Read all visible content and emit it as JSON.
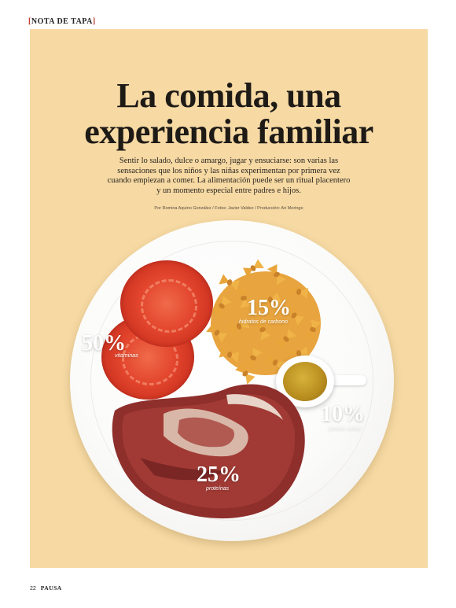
{
  "section_tag": "NOTA DE TAPA",
  "article": {
    "title_line1": "La comida, una",
    "title_line2": "experiencia familiar",
    "lede": "Sentir lo salado, dulce o amargo, jugar y ensuciarse: son varias las sensaciones que los niños y las niñas experimentan por primera vez cuando empiezan a comer. La alimentación puede ser un ritual placentero y un momento especial entre padres e hijos.",
    "credits": "Por Romina Aquino González / Fotos: Javier Valdez / Producción: Ari Moringo"
  },
  "stats": {
    "vegetables": {
      "value": "50%",
      "label": "vitaminas"
    },
    "carbs": {
      "value": "15%",
      "label": "hidratos de carbono"
    },
    "fats": {
      "value": "10%",
      "label": "grasas sanas"
    },
    "proteins": {
      "value": "25%",
      "label": "proteínas"
    }
  },
  "footer": {
    "page_number": "22",
    "magazine": "PAUSA"
  },
  "colors": {
    "background": "#f6d9a3",
    "accent_bracket": "#c0392b",
    "title": "#1e1a16",
    "stat_text": "#ffffff"
  }
}
